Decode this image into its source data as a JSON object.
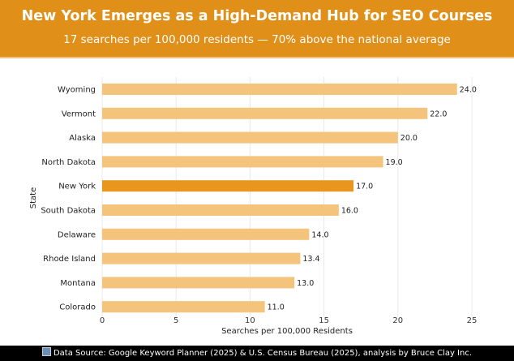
{
  "header": {
    "title": "New York Emerges as a High-Demand Hub for SEO Courses",
    "subtitle": "17 searches per 100,000 residents — 70% above the national average"
  },
  "footer": {
    "text": "Data Source: Google Keyword Planner (2025) & U.S. Census Bureau (2025), analysis by Bruce Clay Inc.",
    "icon": "chart-icon"
  },
  "chart_data": {
    "type": "bar",
    "orientation": "horizontal",
    "title": "New York Emerges as a High-Demand Hub for SEO Courses",
    "xlabel": "Searches per 100,000 Residents",
    "ylabel": "State",
    "categories": [
      "Wyoming",
      "Vermont",
      "Alaska",
      "North Dakota",
      "New York",
      "South Dakota",
      "Delaware",
      "Rhode Island",
      "Montana",
      "Colorado"
    ],
    "values": [
      24.0,
      22.0,
      20.0,
      19.0,
      17.0,
      16.0,
      14.0,
      13.4,
      13.0,
      11.0
    ],
    "data_labels": [
      "24.0",
      "22.0",
      "20.0",
      "19.0",
      "17.0",
      "16.0",
      "14.0",
      "13.4",
      "13.0",
      "11.0"
    ],
    "highlight": "New York",
    "xlim": [
      0,
      25
    ],
    "xticks": [
      0,
      5,
      10,
      15,
      20,
      25
    ],
    "grid": "vertical",
    "colors": {
      "bar": "#F4C37C",
      "highlight": "#E8961E",
      "grid": "#e8e8e8"
    }
  }
}
